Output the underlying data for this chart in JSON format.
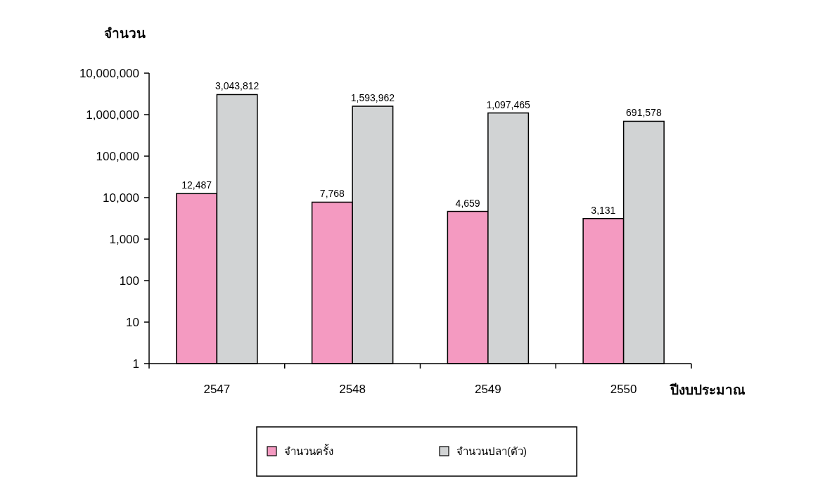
{
  "chart_data": {
    "type": "bar",
    "ylabel": "จำนวน",
    "xlabel": "ปีงบประมาณ",
    "categories": [
      "2547",
      "2548",
      "2549",
      "2550"
    ],
    "series": [
      {
        "name": "จำนวนครั้ง",
        "color": "#f49ac1",
        "values": [
          12487,
          7768,
          4659,
          3131
        ],
        "value_labels": [
          "12,487",
          "7,768",
          "4,659",
          "3,131"
        ]
      },
      {
        "name": "จำนวนปลา(ตัว)",
        "color": "#d1d3d4",
        "values": [
          3043812,
          1593962,
          1097465,
          691578
        ],
        "value_labels": [
          "3,043,812",
          "1,593,962",
          "1,097,465",
          "691,578"
        ]
      }
    ],
    "log": true,
    "ylim": [
      1,
      10000000
    ],
    "yticks": [
      {
        "value": 1,
        "label": "1"
      },
      {
        "value": 10,
        "label": "10"
      },
      {
        "value": 100,
        "label": "100"
      },
      {
        "value": 1000,
        "label": "1,000"
      },
      {
        "value": 10000,
        "label": "10,000"
      },
      {
        "value": 100000,
        "label": "100,000"
      },
      {
        "value": 1000000,
        "label": "1,000,000"
      },
      {
        "value": 10000000,
        "label": "10,000,000"
      }
    ],
    "legend": "bottom",
    "grid": false
  }
}
